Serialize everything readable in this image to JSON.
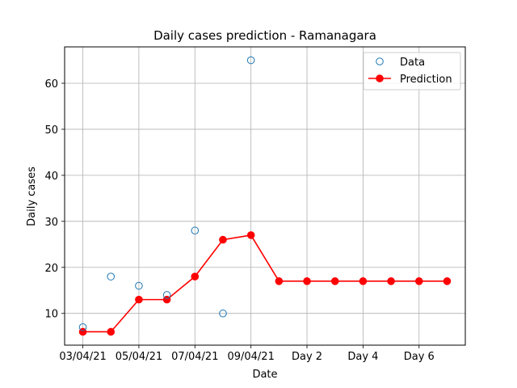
{
  "chart_data": {
    "type": "line",
    "title": "Daily cases prediction - Ramanagara",
    "xlabel": "Date",
    "ylabel": "Daily cases",
    "x_ticks": [
      {
        "label": "03/04/21",
        "index": 0
      },
      {
        "label": "05/04/21",
        "index": 2
      },
      {
        "label": "07/04/21",
        "index": 4
      },
      {
        "label": "09/04/21",
        "index": 6
      },
      {
        "label": "Day 2",
        "index": 8
      },
      {
        "label": "Day 4",
        "index": 10
      },
      {
        "label": "Day 6",
        "index": 12
      }
    ],
    "xlim": [
      -0.65,
      13.65
    ],
    "ylim": [
      3.1,
      67.9
    ],
    "y_ticks": [
      10,
      20,
      30,
      40,
      50,
      60
    ],
    "grid": true,
    "legend_position": "top-right",
    "series": [
      {
        "name": "Data",
        "style": "markers-hollow",
        "color": "#1f77b4",
        "x": [
          0,
          1,
          2,
          3,
          4,
          5,
          6
        ],
        "y": [
          7,
          18,
          16,
          14,
          28,
          10,
          65
        ]
      },
      {
        "name": "Prediction",
        "style": "line-markers",
        "color": "#ff0000",
        "x": [
          0,
          1,
          2,
          3,
          4,
          5,
          6,
          7,
          8,
          9,
          10,
          11,
          12,
          13
        ],
        "y": [
          6,
          6,
          13,
          13,
          18,
          26,
          27,
          17,
          17,
          17,
          17,
          17,
          17,
          17
        ]
      }
    ]
  }
}
